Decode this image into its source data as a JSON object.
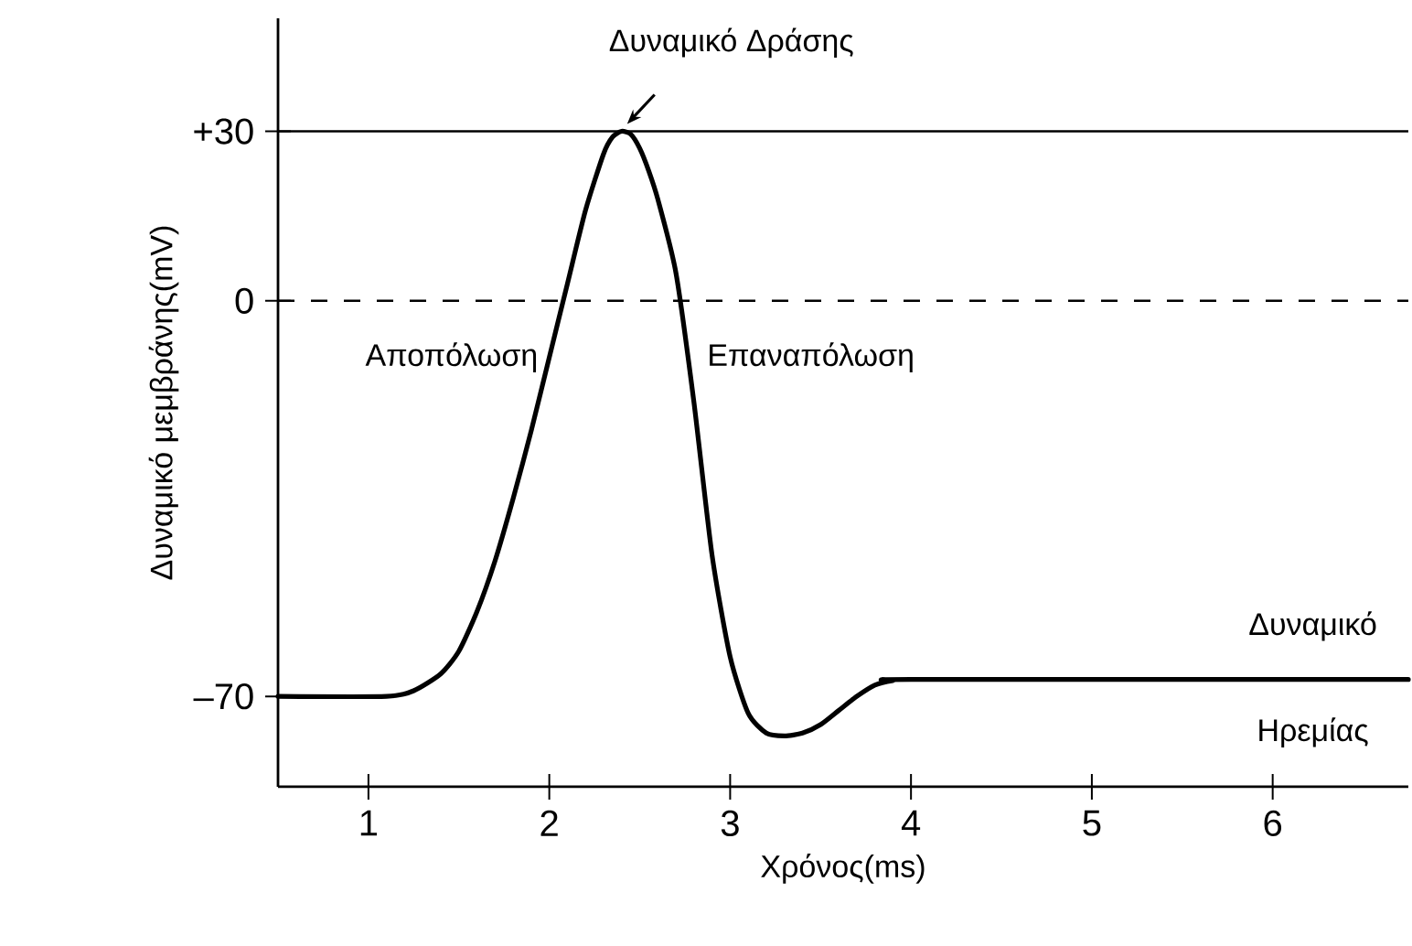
{
  "chart_data": {
    "type": "line",
    "xlabel": "Χρόνος(ms)",
    "ylabel": "Δυναμικό μεμβράνης(mV)",
    "x": [
      0.5,
      1.1,
      1.25,
      1.4,
      1.5,
      1.6,
      1.7,
      1.8,
      1.9,
      2.0,
      2.1,
      2.2,
      2.3,
      2.35,
      2.4,
      2.45,
      2.5,
      2.55,
      2.6,
      2.7,
      2.8,
      2.9,
      3.0,
      3.1,
      3.2,
      3.3,
      3.4,
      3.5,
      3.6,
      3.7,
      3.8,
      3.9,
      4.0,
      6.75
    ],
    "series": [
      {
        "color": "#000000",
        "values": [
          -70,
          -70,
          -69,
          -66,
          -62,
          -55,
          -46,
          -35,
          -23,
          -10,
          3,
          16,
          26,
          29,
          30,
          29.5,
          27,
          23,
          18,
          5,
          -18,
          -45,
          -63,
          -73,
          -76.5,
          -77,
          -76.5,
          -75,
          -72.5,
          -70,
          -68,
          -67.2,
          -67,
          -67
        ]
      }
    ],
    "xlim": [
      0.5,
      6.75
    ],
    "ylim": [
      -86,
      50
    ],
    "xticks": [
      1,
      2,
      3,
      4,
      5,
      6
    ],
    "yticks": [
      {
        "value": 30,
        "label": "+30"
      },
      0,
      {
        "value": -70,
        "label": "–70"
      }
    ],
    "ref_lines": [
      {
        "axis": "y",
        "value": 30,
        "color": "#000000",
        "line_style": "solid"
      },
      {
        "axis": "y",
        "value": 0,
        "color": "#000000",
        "line_style": "dashed"
      }
    ],
    "annotations": [
      {
        "text": "Δυναμικό Δράσης",
        "x": 2.4,
        "y": 30
      },
      {
        "text": "Αποπόλωση",
        "x": 2.0,
        "y": -10
      },
      {
        "text": "Επαναπόλωση",
        "x": 2.75,
        "y": -10
      },
      "Δυναμικό Ηρεμίας"
    ]
  }
}
